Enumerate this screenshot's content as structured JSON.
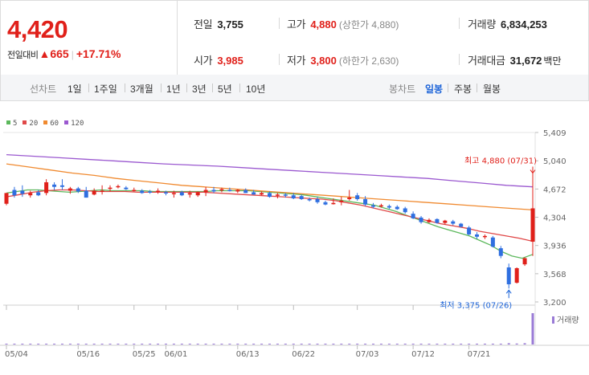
{
  "quote": {
    "price": "4,420",
    "change_label": "전일대비",
    "change_arrow": "▲",
    "change_amount": "665",
    "change_pct": "+17.71%",
    "prev_close_label": "전일",
    "prev_close": "3,755",
    "high_label": "고가",
    "high": "4,880",
    "upper_limit_label": "상한가",
    "upper_limit": "4,880",
    "volume_label": "거래량",
    "volume": "6,834,253",
    "open_label": "시가",
    "open": "3,985",
    "low_label": "저가",
    "low": "3,800",
    "lower_limit_label": "하한가",
    "lower_limit": "2,630",
    "turnover_label": "거래대금",
    "turnover": "31,672",
    "turnover_unit": "백만"
  },
  "periods": {
    "label": "선차트",
    "items": [
      "1일",
      "1주일",
      "3개월",
      "1년",
      "3년",
      "5년",
      "10년"
    ]
  },
  "candle_types": {
    "label": "봉차트",
    "items": [
      "일봉",
      "주봉",
      "월봉"
    ],
    "active": "일봉"
  },
  "colors": {
    "up": "#e0201a",
    "down": "#2f6fe0",
    "ma5": "#5cb85c",
    "ma20": "#e04848",
    "ma60": "#f08a30",
    "ma120": "#9b59d0"
  },
  "chart_data": {
    "type": "candlestick",
    "legend": [
      "5",
      "20",
      "60",
      "120"
    ],
    "ylim": [
      3200,
      5409
    ],
    "y_ticks": [
      "5,409",
      "5,040",
      "4,672",
      "4,304",
      "3,936",
      "3,568",
      "3,200"
    ],
    "x_ticks": [
      "05/04",
      "05/16",
      "05/25",
      "06/01",
      "06/13",
      "06/22",
      "07/03",
      "07/12",
      "07/21"
    ],
    "max_label": "최고 4,880 (07/31)",
    "min_label": "최저 3,375 (07/26)",
    "volume_label": "거래량",
    "candles": [
      [
        4480,
        4620,
        4460,
        4620
      ],
      [
        4660,
        4700,
        4560,
        4590
      ],
      [
        4650,
        4720,
        4570,
        4610
      ],
      [
        4590,
        4650,
        4560,
        4620
      ],
      [
        4630,
        4660,
        4580,
        4590
      ],
      [
        4620,
        4800,
        4590,
        4760
      ],
      [
        4730,
        4760,
        4660,
        4700
      ],
      [
        4720,
        4800,
        4660,
        4700
      ],
      [
        4650,
        4700,
        4610,
        4680
      ],
      [
        4680,
        4700,
        4620,
        4640
      ],
      [
        4650,
        4700,
        4560,
        4560
      ],
      [
        4600,
        4680,
        4590,
        4650
      ],
      [
        4640,
        4720,
        4600,
        4650
      ],
      [
        4680,
        4720,
        4640,
        4690
      ],
      [
        4700,
        4730,
        4680,
        4710
      ],
      [
        4690,
        4710,
        4660,
        4670
      ],
      [
        4650,
        4690,
        4640,
        4660
      ],
      [
        4650,
        4670,
        4610,
        4620
      ],
      [
        4640,
        4660,
        4610,
        4630
      ],
      [
        4640,
        4680,
        4610,
        4650
      ],
      [
        4630,
        4650,
        4590,
        4620
      ],
      [
        4610,
        4650,
        4560,
        4620
      ],
      [
        4630,
        4650,
        4580,
        4590
      ],
      [
        4600,
        4650,
        4560,
        4620
      ],
      [
        4590,
        4640,
        4570,
        4630
      ],
      [
        4630,
        4700,
        4580,
        4660
      ],
      [
        4660,
        4700,
        4620,
        4640
      ],
      [
        4660,
        4690,
        4630,
        4670
      ],
      [
        4660,
        4690,
        4640,
        4650
      ],
      [
        4640,
        4670,
        4620,
        4660
      ],
      [
        4660,
        4680,
        4620,
        4620
      ],
      [
        4630,
        4660,
        4600,
        4600
      ],
      [
        4600,
        4640,
        4590,
        4620
      ],
      [
        4620,
        4640,
        4560,
        4570
      ],
      [
        4590,
        4620,
        4550,
        4600
      ],
      [
        4600,
        4620,
        4560,
        4590
      ],
      [
        4590,
        4620,
        4540,
        4550
      ],
      [
        4580,
        4600,
        4530,
        4540
      ],
      [
        4540,
        4560,
        4510,
        4530
      ],
      [
        4540,
        4570,
        4480,
        4500
      ],
      [
        4500,
        4520,
        4460,
        4470
      ],
      [
        4490,
        4550,
        4470,
        4490
      ],
      [
        4500,
        4570,
        4460,
        4520
      ],
      [
        4540,
        4660,
        4520,
        4560
      ],
      [
        4590,
        4620,
        4520,
        4540
      ],
      [
        4540,
        4580,
        4450,
        4470
      ],
      [
        4460,
        4490,
        4420,
        4440
      ],
      [
        4450,
        4480,
        4430,
        4460
      ],
      [
        4450,
        4470,
        4410,
        4430
      ],
      [
        4440,
        4460,
        4400,
        4410
      ],
      [
        4420,
        4440,
        4350,
        4370
      ],
      [
        4350,
        4380,
        4280,
        4290
      ],
      [
        4300,
        4320,
        4220,
        4240
      ],
      [
        4240,
        4290,
        4230,
        4270
      ],
      [
        4280,
        4290,
        4220,
        4230
      ],
      [
        4230,
        4270,
        4210,
        4260
      ],
      [
        4250,
        4270,
        4200,
        4220
      ],
      [
        4220,
        4230,
        4170,
        4180
      ],
      [
        4170,
        4190,
        4070,
        4080
      ],
      [
        4080,
        4110,
        4020,
        4050
      ],
      [
        4060,
        4080,
        4020,
        4060
      ],
      [
        4040,
        4060,
        3910,
        3920
      ],
      [
        3900,
        3930,
        3770,
        3800
      ],
      [
        3650,
        3700,
        3375,
        3430
      ],
      [
        3450,
        3650,
        3440,
        3640
      ],
      [
        3690,
        3780,
        3670,
        3770
      ],
      [
        3985,
        4880,
        3800,
        4420
      ]
    ],
    "series": [
      {
        "name": "5",
        "values": [
          4620,
          4640,
          4660,
          4660,
          4650,
          4640,
          4630,
          4640,
          4650,
          4660,
          4650,
          4650,
          4650,
          4650,
          4640,
          4640,
          4640,
          4640,
          4640,
          4640,
          4650,
          4650,
          4650,
          4650,
          4640,
          4630,
          4620,
          4610,
          4600,
          4580,
          4560,
          4540,
          4520,
          4500,
          4480,
          4460,
          4420,
          4380,
          4330,
          4280,
          4230,
          4180,
          4140,
          4100,
          4060,
          4000,
          3940,
          3860,
          3800,
          3770,
          3820
        ]
      },
      {
        "name": "20",
        "values": [
          4570,
          4600,
          4630,
          4650,
          4660,
          4660,
          4650,
          4640,
          4640,
          4640,
          4630,
          4630,
          4630,
          4630,
          4630,
          4630,
          4620,
          4610,
          4600,
          4590,
          4580,
          4570,
          4560,
          4550,
          4540,
          4520,
          4490,
          4460,
          4420,
          4380,
          4340,
          4300,
          4260,
          4220,
          4190,
          4160,
          4120,
          4090,
          4060,
          4030,
          3990
        ]
      },
      {
        "name": "60",
        "values": [
          5000,
          4960,
          4920,
          4880,
          4850,
          4810,
          4780,
          4750,
          4720,
          4700,
          4680,
          4660,
          4640,
          4620,
          4600,
          4580,
          4560,
          4540,
          4520,
          4500,
          4480,
          4460,
          4440,
          4420,
          4400
        ]
      },
      {
        "name": "120",
        "values": [
          5120,
          5100,
          5080,
          5060,
          5040,
          5020,
          5000,
          4985,
          4970,
          4950,
          4930,
          4910,
          4890,
          4870,
          4850,
          4830,
          4810,
          4780,
          4750,
          4720,
          4700
        ]
      }
    ],
    "volume": [
      0.02,
      0.02,
      0.02,
      0.02,
      0.02,
      0.02,
      0.02,
      0.02,
      0.02,
      0.02,
      0.02,
      0.02,
      0.02,
      0.02,
      0.02,
      0.02,
      0.02,
      0.02,
      0.02,
      0.02,
      0.02,
      0.02,
      0.02,
      0.02,
      0.02,
      0.02,
      0.02,
      0.02,
      0.02,
      0.02,
      0.02,
      0.02,
      0.02,
      0.02,
      0.02,
      0.02,
      0.02,
      0.02,
      0.02,
      0.02,
      0.02,
      0.02,
      0.02,
      0.02,
      0.02,
      0.02,
      0.02,
      0.02,
      0.02,
      0.02,
      0.02,
      0.02,
      0.02,
      0.02,
      0.02,
      0.02,
      0.02,
      0.02,
      0.02,
      0.02,
      0.02,
      0.02,
      0.02,
      0.04,
      0.03,
      0.04,
      1.0
    ]
  }
}
